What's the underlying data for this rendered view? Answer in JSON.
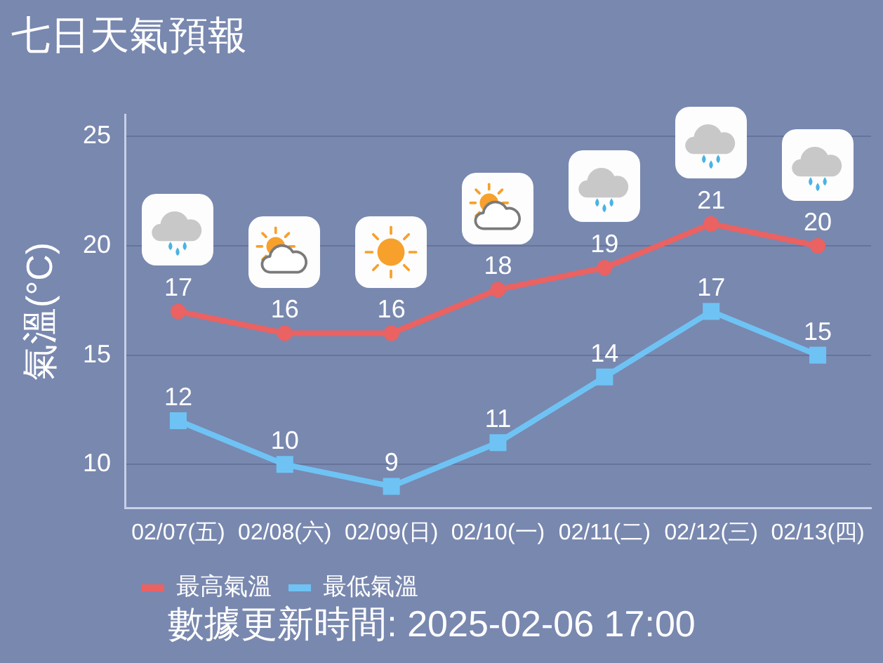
{
  "chart_data": {
    "type": "line",
    "title": "七日天氣預報",
    "ylabel": "氣溫(°C)",
    "categories": [
      "02/07(五)",
      "02/08(六)",
      "02/09(日)",
      "02/10(一)",
      "02/11(二)",
      "02/12(三)",
      "02/13(四)"
    ],
    "series": [
      {
        "name": "最高氣溫",
        "color": "#ea6262",
        "values": [
          17,
          16,
          16,
          18,
          19,
          21,
          20
        ],
        "marker": "circle"
      },
      {
        "name": "最低氣溫",
        "color": "#6ec3f4",
        "values": [
          12,
          10,
          9,
          11,
          14,
          17,
          15
        ],
        "marker": "square"
      }
    ],
    "ylim": [
      8,
      26
    ],
    "yticks": [
      10,
      15,
      20,
      25
    ],
    "grid": "y",
    "legend": "bottom left",
    "data_labels": true,
    "line_style": "solid",
    "annotations": [
      "數據更新時間: 2025-02-06 17:00"
    ]
  }
}
